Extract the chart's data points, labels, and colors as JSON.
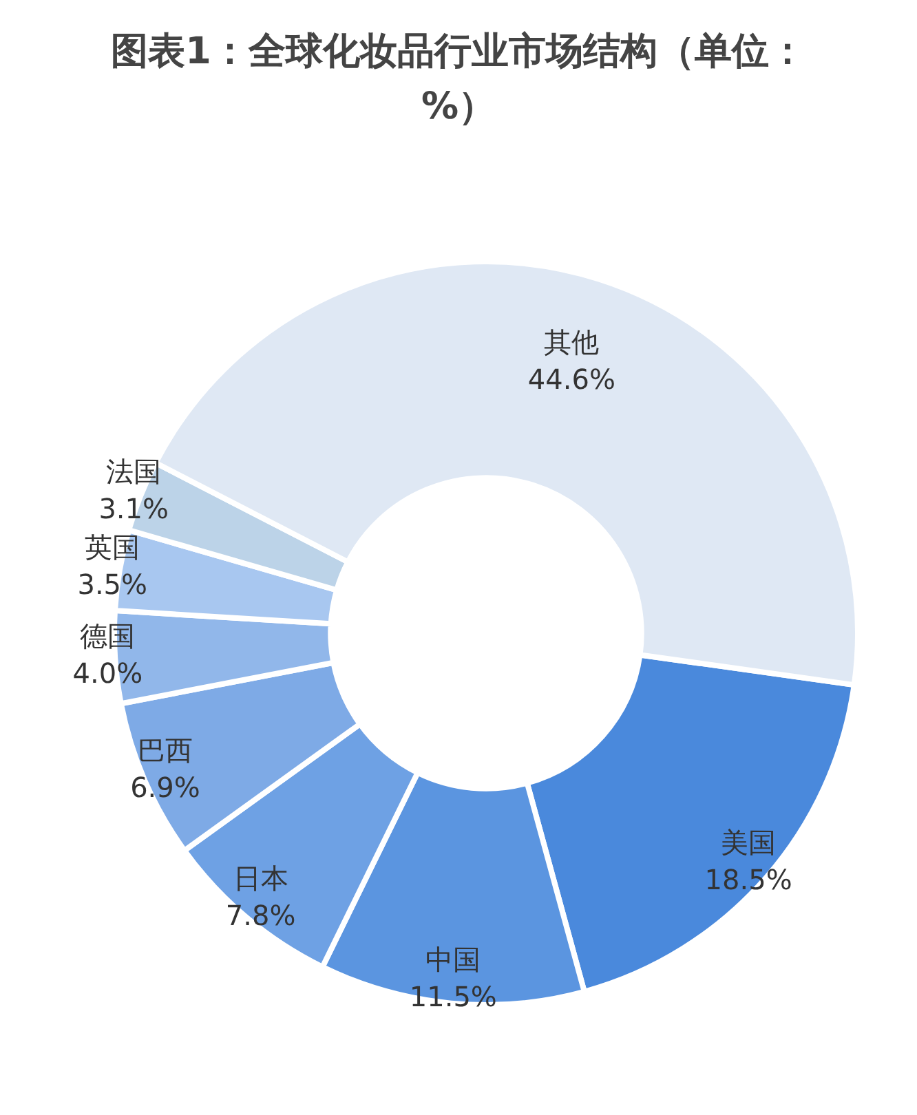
{
  "chart_data": {
    "type": "donut",
    "title": "图表1：全球化妆品行业市场结构（单位：%）",
    "categories": [
      "美国",
      "中国",
      "日本",
      "巴西",
      "德国",
      "英国",
      "法国",
      "其他"
    ],
    "values": [
      18.5,
      11.5,
      7.8,
      6.9,
      4.0,
      3.5,
      3.1,
      44.6
    ],
    "value_labels": [
      "18.5%",
      "11.5%",
      "7.8%",
      "6.9%",
      "4.0%",
      "3.5%",
      "3.1%",
      "44.6%"
    ],
    "colors": [
      "#4a89dc",
      "#5b95e0",
      "#6ea1e4",
      "#7eaae6",
      "#91b7ea",
      "#a8c7f0",
      "#bcd3e8",
      "#dfe8f4"
    ],
    "legend": false
  }
}
